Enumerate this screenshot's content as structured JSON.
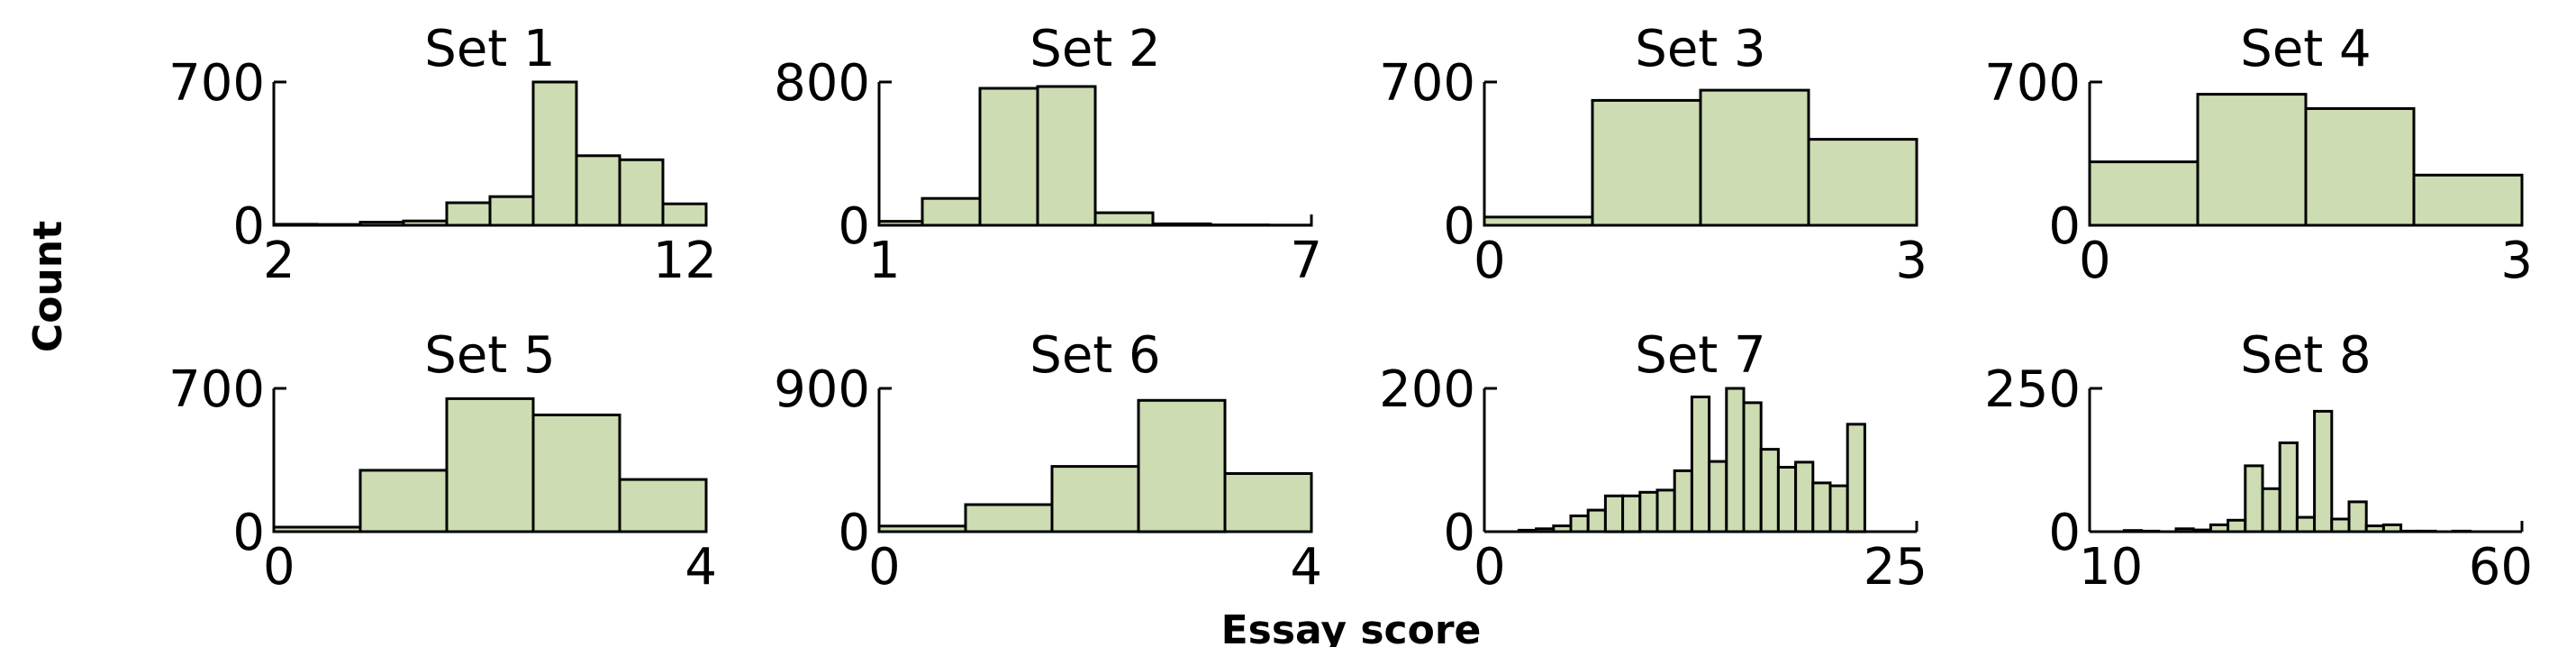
{
  "figure": {
    "xlabel": "Essay score",
    "ylabel": "Count",
    "bar_color": "#cddcb2",
    "edge_color": "#000000"
  },
  "chart_data": [
    {
      "type": "bar",
      "title": "Set 1",
      "xlim": [
        2,
        12
      ],
      "ylim": [
        0,
        700
      ],
      "x_ticks": [
        "2",
        "12"
      ],
      "y_ticks": [
        "0",
        "700"
      ],
      "bins": [
        [
          2,
          3
        ],
        [
          3,
          4
        ],
        [
          4,
          5
        ],
        [
          5,
          6
        ],
        [
          6,
          7
        ],
        [
          7,
          8
        ],
        [
          8,
          9
        ],
        [
          9,
          10
        ],
        [
          10,
          11
        ],
        [
          11,
          12
        ]
      ],
      "values": [
        5,
        4,
        15,
        21,
        110,
        140,
        700,
        340,
        320,
        105
      ]
    },
    {
      "type": "bar",
      "title": "Set 2",
      "xlim": [
        1,
        7
      ],
      "ylim": [
        0,
        800
      ],
      "x_ticks": [
        "1",
        "7"
      ],
      "y_ticks": [
        "0",
        "800"
      ],
      "bins": [
        [
          1,
          1.6
        ],
        [
          1.6,
          2.4
        ],
        [
          2.4,
          3.2
        ],
        [
          3.2,
          4
        ],
        [
          4,
          4.8
        ],
        [
          4.8,
          5.6
        ],
        [
          5.6,
          6.4
        ],
        [
          6.4,
          7
        ]
      ],
      "values": [
        22,
        150,
        765,
        775,
        70,
        8,
        2,
        1
      ]
    },
    {
      "type": "bar",
      "title": "Set 3",
      "xlim": [
        0,
        3
      ],
      "ylim": [
        0,
        700
      ],
      "x_ticks": [
        "0",
        "3"
      ],
      "y_ticks": [
        "0",
        "700"
      ],
      "bins": [
        [
          0,
          0.75
        ],
        [
          0.75,
          1.5
        ],
        [
          1.5,
          2.25
        ],
        [
          2.25,
          3
        ]
      ],
      "values": [
        40,
        610,
        660,
        420
      ]
    },
    {
      "type": "bar",
      "title": "Set 4",
      "xlim": [
        0,
        3
      ],
      "ylim": [
        0,
        700
      ],
      "x_ticks": [
        "0",
        "3"
      ],
      "y_ticks": [
        "0",
        "700"
      ],
      "bins": [
        [
          0,
          0.75
        ],
        [
          0.75,
          1.5
        ],
        [
          1.5,
          2.25
        ],
        [
          2.25,
          3
        ]
      ],
      "values": [
        310,
        640,
        570,
        245
      ]
    },
    {
      "type": "bar",
      "title": "Set 5",
      "xlim": [
        0,
        4
      ],
      "ylim": [
        0,
        700
      ],
      "x_ticks": [
        "0",
        "4"
      ],
      "y_ticks": [
        "0",
        "700"
      ],
      "bins": [
        [
          0,
          0.8
        ],
        [
          0.8,
          1.6
        ],
        [
          1.6,
          2.4
        ],
        [
          2.4,
          3.2
        ],
        [
          3.2,
          4
        ]
      ],
      "values": [
        22,
        300,
        650,
        570,
        255
      ]
    },
    {
      "type": "bar",
      "title": "Set 6",
      "xlim": [
        0,
        4
      ],
      "ylim": [
        0,
        900
      ],
      "x_ticks": [
        "0",
        "4"
      ],
      "y_ticks": [
        "0",
        "900"
      ],
      "bins": [
        [
          0,
          0.8
        ],
        [
          0.8,
          1.6
        ],
        [
          1.6,
          2.4
        ],
        [
          2.4,
          3.2
        ],
        [
          3.2,
          4
        ]
      ],
      "values": [
        35,
        170,
        410,
        825,
        365
      ]
    },
    {
      "type": "bar",
      "title": "Set 7",
      "xlim": [
        0,
        25
      ],
      "ylim": [
        0,
        200
      ],
      "x_ticks": [
        "0",
        "25"
      ],
      "y_ticks": [
        "0",
        "200"
      ],
      "bins": [
        [
          2,
          3
        ],
        [
          3,
          4
        ],
        [
          4,
          5
        ],
        [
          5,
          6
        ],
        [
          6,
          7
        ],
        [
          7,
          8
        ],
        [
          8,
          9
        ],
        [
          9,
          10
        ],
        [
          10,
          11
        ],
        [
          11,
          12
        ],
        [
          12,
          13
        ],
        [
          13,
          14
        ],
        [
          14,
          15
        ],
        [
          15,
          16
        ],
        [
          16,
          17
        ],
        [
          17,
          18
        ],
        [
          18,
          19
        ],
        [
          19,
          20
        ],
        [
          20,
          21
        ],
        [
          21,
          22
        ],
        [
          22,
          23
        ],
        [
          23,
          24
        ]
      ],
      "values": [
        2,
        4,
        8,
        22,
        30,
        50,
        50,
        55,
        58,
        85,
        188,
        98,
        200,
        180,
        115,
        90,
        97,
        68,
        64,
        150,
        0,
        0
      ]
    },
    {
      "type": "bar",
      "title": "Set 8",
      "xlim": [
        10,
        60
      ],
      "ylim": [
        0,
        250
      ],
      "x_ticks": [
        "10",
        "60"
      ],
      "y_ticks": [
        "0",
        "250"
      ],
      "bins": [
        [
          12,
          14
        ],
        [
          14,
          16
        ],
        [
          16,
          18
        ],
        [
          18,
          20
        ],
        [
          20,
          22
        ],
        [
          22,
          24
        ],
        [
          24,
          26
        ],
        [
          26,
          28
        ],
        [
          28,
          30
        ],
        [
          30,
          32
        ],
        [
          32,
          34
        ],
        [
          34,
          36
        ],
        [
          36,
          38
        ],
        [
          38,
          40
        ],
        [
          40,
          42
        ],
        [
          42,
          44
        ],
        [
          44,
          46
        ],
        [
          46,
          48
        ],
        [
          48,
          50
        ],
        [
          50,
          52
        ],
        [
          52,
          54
        ],
        [
          54,
          56
        ],
        [
          56,
          58
        ]
      ],
      "values": [
        0,
        2,
        1,
        0,
        5,
        3,
        12,
        20,
        115,
        75,
        155,
        25,
        210,
        22,
        52,
        10,
        12,
        1,
        1,
        0,
        1,
        0,
        0
      ]
    }
  ]
}
